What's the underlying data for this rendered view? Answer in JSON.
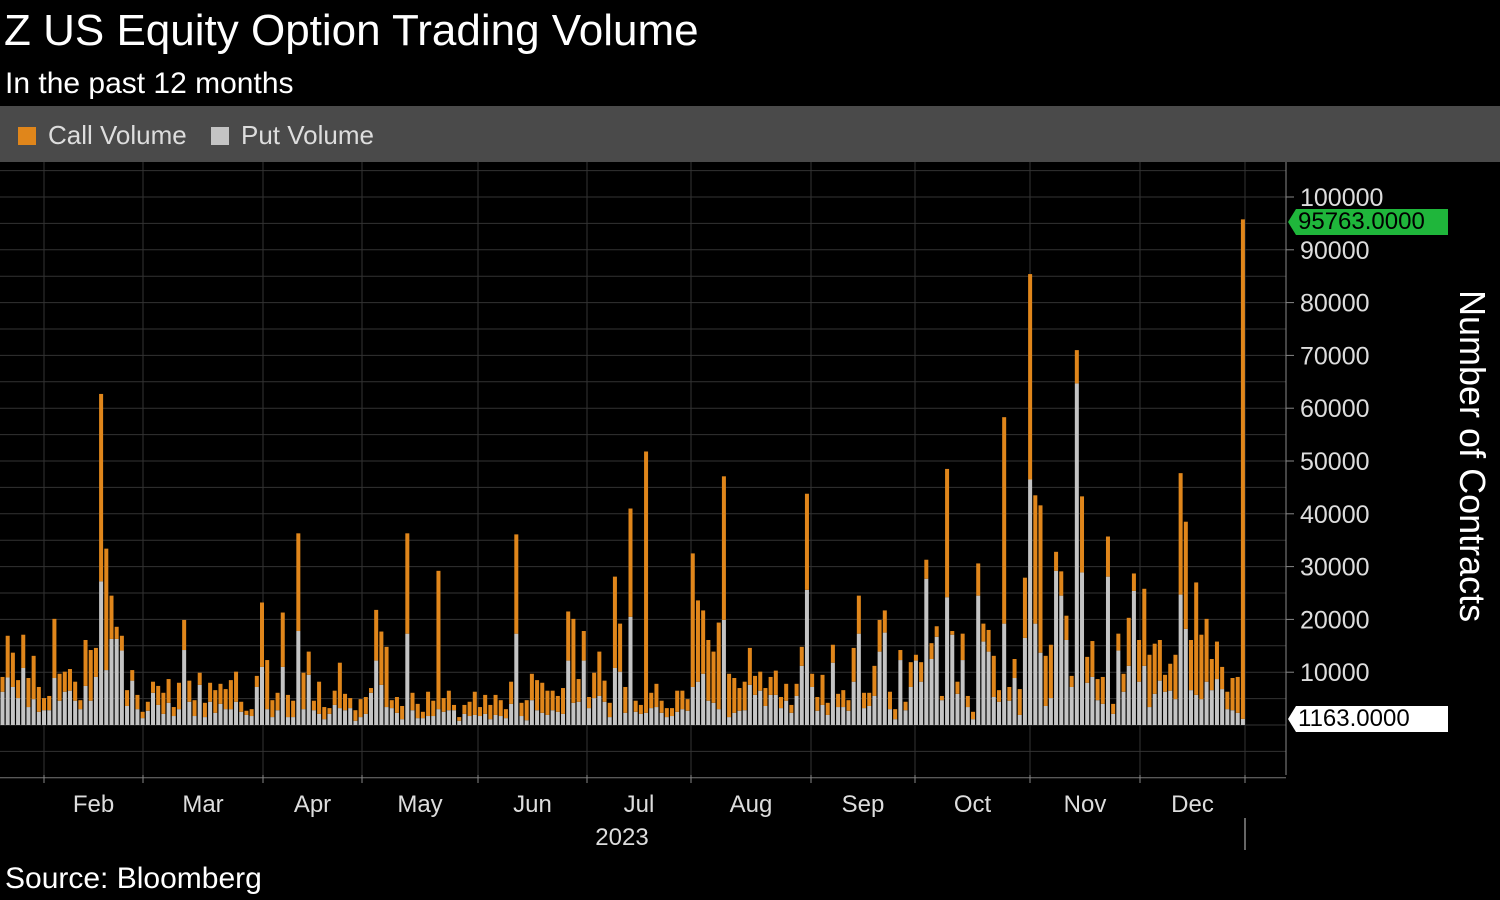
{
  "header": {
    "title": "Z US Equity Option Trading Volume",
    "subtitle": "In the past 12 months"
  },
  "legend": [
    {
      "label": "Call Volume",
      "color": "#e0861b"
    },
    {
      "label": "Put Volume",
      "color": "#c4c4c4"
    }
  ],
  "footer": {
    "source": "Source: Bloomberg"
  },
  "chart_data": {
    "type": "bar",
    "stacked": true,
    "title": "Z US Equity Option Trading Volume",
    "subtitle": "In the past 12 months",
    "ylabel": "Number of Contracts",
    "y_axis_position": "right",
    "ylim": [
      -10000,
      105000
    ],
    "yticks": [
      "10000",
      "20000",
      "30000",
      "40000",
      "50000",
      "60000",
      "70000",
      "80000",
      "90000",
      "100000"
    ],
    "xtick_labels": [
      "Feb",
      "Mar",
      "Apr",
      "May",
      "Jun",
      "Jul",
      "Aug",
      "Sep",
      "Oct",
      "Nov",
      "Dec"
    ],
    "x_year_label": "2023",
    "grid": true,
    "legend_position": "top-left",
    "last_value_tags": {
      "total": "95763.0000",
      "put": "1163.0000"
    },
    "series": [
      {
        "name": "Call Volume",
        "color": "#e0861b",
        "values": [
          2800,
          7900,
          6500,
          3400,
          6300,
          5500,
          8200,
          4700,
          2300,
          2700,
          11200,
          5100,
          3800,
          4100,
          3600,
          1700,
          8700,
          9600,
          5500,
          35500,
          23000,
          8200,
          2300,
          2800,
          3000,
          2000,
          2700,
          1200,
          1700,
          2100,
          3600,
          4000,
          4500,
          1700,
          5000,
          5700,
          4000,
          3000,
          2300,
          2700,
          3600,
          4300,
          3800,
          3800,
          5500,
          5700,
          1900,
          800,
          1300,
          2100,
          12200,
          9300,
          3200,
          3300,
          10300,
          4200,
          3100,
          18500,
          6900,
          4400,
          1800,
          6100,
          2300,
          1100,
          2700,
          8600,
          3100,
          1900,
          2000,
          3400,
          3200,
          900,
          9600,
          10100,
          11400,
          1500,
          3000,
          2500,
          19000,
          3300,
          2700,
          1200,
          4600,
          2900,
          26200,
          2600,
          3700,
          1000,
          700,
          1700,
          2700,
          4400,
          1700,
          3600,
          2700,
          3800,
          3000,
          1700,
          4200,
          18800,
          2500,
          3800,
          5000,
          5700,
          5700,
          4600,
          3700,
          3000,
          4900,
          9300,
          15900,
          4300,
          5600,
          2100,
          4800,
          8400,
          4000,
          2700,
          17300,
          9100,
          4900,
          20500,
          2100,
          1700,
          49500,
          2900,
          4400,
          2300,
          1700,
          1500,
          4000,
          3500,
          2200,
          25300,
          15400,
          12000,
          11500,
          9700,
          16400,
          27200,
          8200,
          6600,
          4300,
          5400,
          7000,
          3600,
          3600,
          3400,
          3400,
          4600,
          2100,
          3200,
          1500,
          2300,
          3600,
          18200,
          2500,
          2600,
          5700,
          2300,
          3400,
          2500,
          3200,
          2000,
          6400,
          7200,
          2900,
          2500,
          5700,
          6000,
          4200,
          3300,
          1900,
          1900,
          1600,
          4700,
          1100,
          3700,
          3600,
          3000,
          2000,
          800,
          24300,
          700,
          2300,
          5000,
          2100,
          1400,
          6100,
          3400,
          4100,
          7800,
          2200,
          39100,
          2600,
          3600,
          4900,
          11400,
          38900,
          24300,
          27900,
          9500,
          10100,
          3600,
          4600,
          4600,
          2100,
          6300,
          14400,
          4900,
          6800,
          4000,
          5100,
          7600,
          1900,
          3200,
          3400,
          9100,
          3300,
          7900,
          14600,
          9900,
          9500,
          7700,
          3200,
          5100,
          8400,
          23000,
          20300,
          9500,
          21300,
          12200,
          11900,
          5900,
          7100,
          4200,
          3300,
          6100,
          6800,
          94600
        ]
      },
      {
        "name": "Put Volume",
        "color": "#c4c4c4",
        "values": [
          6300,
          9000,
          7200,
          5100,
          10800,
          3400,
          4900,
          2500,
          2800,
          2800,
          8900,
          4600,
          6300,
          6500,
          4600,
          3000,
          7400,
          4600,
          9100,
          27200,
          10400,
          16300,
          16300,
          14100,
          3600,
          8400,
          3000,
          1300,
          2700,
          6100,
          3800,
          2100,
          4200,
          1700,
          3000,
          14200,
          4400,
          1700,
          7600,
          1500,
          4400,
          2300,
          4000,
          3000,
          3000,
          4400,
          2500,
          1900,
          1700,
          7200,
          11000,
          3000,
          1500,
          2800,
          11000,
          1500,
          1500,
          17800,
          3000,
          9500,
          2800,
          2100,
          1100,
          2100,
          3800,
          3200,
          2800,
          3200,
          800,
          1500,
          2100,
          6100,
          12200,
          7600,
          3400,
          3200,
          2300,
          1100,
          17300,
          2800,
          1300,
          1300,
          1700,
          1700,
          3000,
          2500,
          2800,
          2800,
          800,
          2100,
          1700,
          1900,
          1700,
          2100,
          1100,
          1900,
          1700,
          1300,
          4000,
          17300,
          1700,
          900,
          4700,
          2800,
          2300,
          1900,
          2800,
          2500,
          2100,
          12200,
          4200,
          4400,
          12200,
          3200,
          5100,
          5500,
          4400,
          1500,
          10800,
          10100,
          2300,
          20500,
          2500,
          2100,
          2300,
          3200,
          3400,
          2300,
          1500,
          1700,
          2500,
          3000,
          2700,
          7200,
          8200,
          9700,
          4600,
          4200,
          3000,
          19900,
          1500,
          2300,
          2700,
          2800,
          7600,
          5700,
          6500,
          3600,
          5700,
          5700,
          3200,
          4600,
          2300,
          5500,
          11200,
          25600,
          7200,
          2700,
          3800,
          1900,
          11800,
          3400,
          3400,
          2700,
          8200,
          17300,
          3200,
          3600,
          5500,
          13900,
          17500,
          3000,
          1100,
          12300,
          2800,
          7200,
          12200,
          8200,
          27700,
          12500,
          16700,
          4700,
          24200,
          17100,
          5900,
          12300,
          3400,
          1100,
          24500,
          15800,
          13900,
          5300,
          4400,
          19200,
          4600,
          8900,
          1900,
          16500,
          46500,
          19200,
          13700,
          3600,
          5100,
          29200,
          24500,
          16100,
          7200,
          64700,
          28900,
          8000,
          9100,
          4700,
          4000,
          28100,
          2100,
          14100,
          6300,
          11200,
          25400,
          8200,
          11200,
          3400,
          5900,
          8400,
          6300,
          6500,
          4900,
          24700,
          18200,
          6600,
          5700,
          4900,
          8200,
          6600,
          8700,
          6800,
          3000,
          2800,
          2300,
          1163
        ]
      }
    ]
  }
}
